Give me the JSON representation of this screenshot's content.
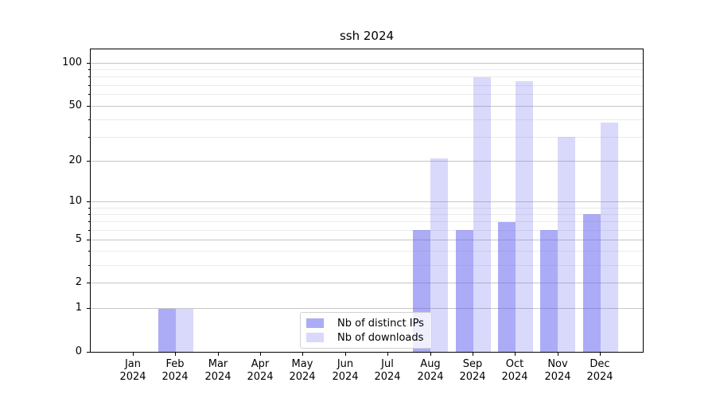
{
  "chart_data": {
    "type": "bar",
    "title": "ssh 2024",
    "categories": [
      "Jan 2024",
      "Feb 2024",
      "Mar 2024",
      "Apr 2024",
      "May 2024",
      "Jun 2024",
      "Jul 2024",
      "Aug 2024",
      "Sep 2024",
      "Oct 2024",
      "Nov 2024",
      "Dec 2024"
    ],
    "series": [
      {
        "name": "Nb of distinct IPs",
        "color": "rgba(102,102,238,0.55)",
        "values": [
          0,
          1,
          0,
          0,
          0,
          0,
          0,
          6,
          6,
          7,
          6,
          8
        ]
      },
      {
        "name": "Nb of downloads",
        "color": "rgba(102,102,238,0.25)",
        "values": [
          0,
          1,
          0,
          0,
          0,
          0,
          0,
          21,
          80,
          75,
          30,
          38
        ]
      }
    ],
    "yscale": "log1p",
    "ylim": [
      0,
      125
    ],
    "yticks_major": [
      0,
      1,
      2,
      5,
      10,
      20,
      50,
      100
    ],
    "yticks_minor": [
      3,
      4,
      6,
      7,
      8,
      9,
      30,
      40,
      60,
      70,
      80,
      90
    ],
    "grid": "horizontal",
    "legend_position": "inside-bottom-center",
    "colors": {
      "grid_major": "#c6c6c6",
      "grid_minor": "#ebebeb",
      "axis": "#000000",
      "background": "#ffffff"
    }
  }
}
